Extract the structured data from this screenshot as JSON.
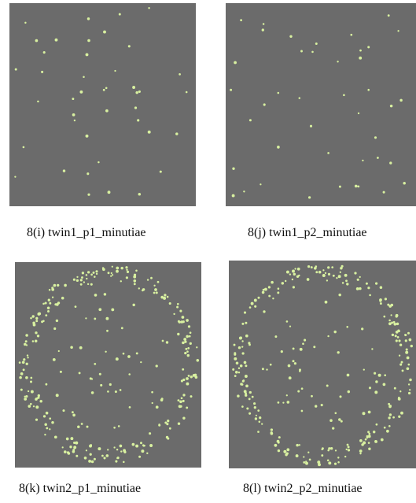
{
  "colors": {
    "panel_background": "#6b6b6b",
    "minutia_dot": "#d8f0a0"
  },
  "figures": [
    {
      "id": "i",
      "caption": "8(i) twin1_p1_minutiae",
      "pattern": "sparse"
    },
    {
      "id": "j",
      "caption": "8(j) twin1_p2_minutiae",
      "pattern": "sparse"
    },
    {
      "id": "k",
      "caption": "8(k) twin2_p1_minutiae",
      "pattern": "dense-ring"
    },
    {
      "id": "l",
      "caption": "8(l) twin2_p2_minutiae",
      "pattern": "dense-ring"
    }
  ]
}
